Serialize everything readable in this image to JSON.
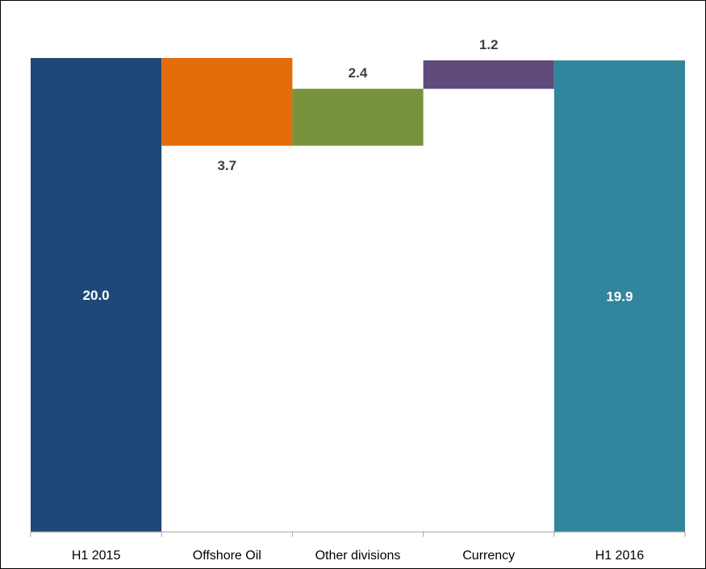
{
  "chart_data": {
    "type": "bar",
    "subtype": "waterfall",
    "title": "",
    "xlabel": "",
    "ylabel": "",
    "ylim": [
      0,
      20.0
    ],
    "grid": false,
    "legend": "none",
    "categories": [
      "H1 2015",
      "Offshore Oil",
      "Other divisions",
      "Currency",
      "H1 2016"
    ],
    "steps": [
      {
        "category": "H1 2015",
        "kind": "total",
        "value": 20.0,
        "label": "20.0",
        "color": "#1f4878"
      },
      {
        "category": "Offshore Oil",
        "kind": "decrease",
        "value": 3.7,
        "label": "3.7",
        "color": "#e46c0a"
      },
      {
        "category": "Other divisions",
        "kind": "increase",
        "value": 2.4,
        "label": "2.4",
        "color": "#77933c"
      },
      {
        "category": "Currency",
        "kind": "increase",
        "value": 1.2,
        "label": "1.2",
        "color": "#604a7b"
      },
      {
        "category": "H1 2016",
        "kind": "total",
        "value": 19.9,
        "label": "19.9",
        "color": "#31859c"
      }
    ]
  }
}
